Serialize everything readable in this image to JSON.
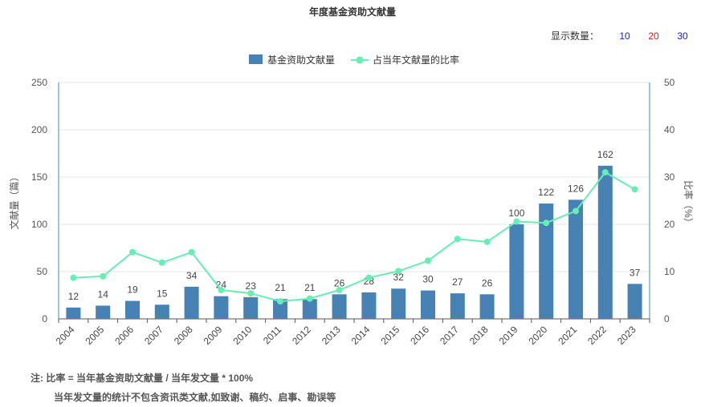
{
  "page": {
    "title": "年度基金资助文献量",
    "display_count_label": "显示数量：",
    "display_count_options": [
      "10",
      "20",
      "30"
    ],
    "note_line1": "注:  比率 = 当年基金资助文献量 / 当年发文量 * 100%",
    "note_line2": "当年发文量的统计不包含资讯类文献,如致谢、稿约、启事、勘误等"
  },
  "chart_data": {
    "type": "bar",
    "categories": [
      "2004",
      "2005",
      "2006",
      "2007",
      "2008",
      "2009",
      "2010",
      "2011",
      "2012",
      "2013",
      "2014",
      "2015",
      "2016",
      "2017",
      "2018",
      "2019",
      "2020",
      "2021",
      "2022",
      "2023"
    ],
    "series": [
      {
        "name": "基金资助文献量",
        "axis": "left",
        "type": "bar",
        "color": "#4682b4",
        "values": [
          12,
          14,
          19,
          15,
          34,
          24,
          23,
          21,
          21,
          26,
          28,
          32,
          30,
          27,
          26,
          100,
          122,
          126,
          162,
          37
        ]
      },
      {
        "name": "占当年文献量的比率",
        "axis": "right",
        "type": "line",
        "color": "#66eeb4",
        "values": [
          8.7,
          9.0,
          14.1,
          11.9,
          14.1,
          6.1,
          5.4,
          3.7,
          4.3,
          6.1,
          8.7,
          10.1,
          12.3,
          16.9,
          16.3,
          20.6,
          20.3,
          22.8,
          31.0,
          27.4
        ]
      }
    ],
    "ylabel": "文献量（篇）",
    "y2label": "比率（%）",
    "ylim": [
      0,
      250
    ],
    "y2lim": [
      0,
      50
    ],
    "yticks": [
      "0",
      "50",
      "100",
      "150",
      "200",
      "250"
    ],
    "y2ticks": [
      "0",
      "10",
      "20",
      "30",
      "40",
      "50"
    ],
    "grid": true,
    "legend": "top-center"
  }
}
